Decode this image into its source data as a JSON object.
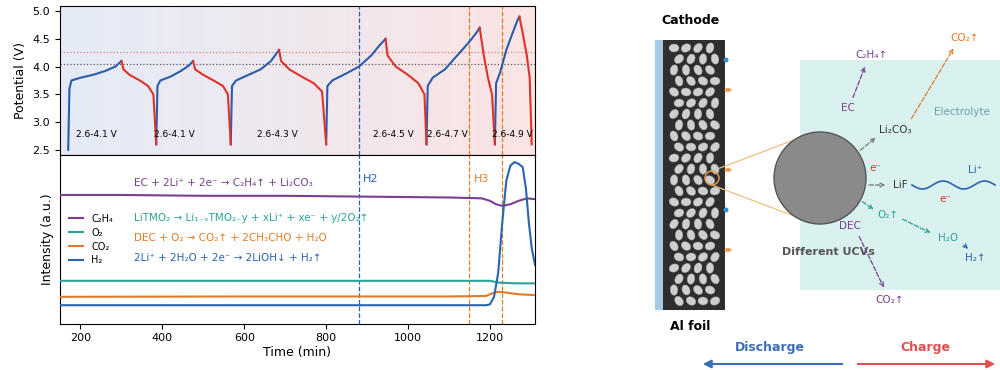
{
  "chart_data": [
    {
      "type": "line",
      "ylabel": "Potential (V)",
      "xlim": [
        150,
        1310
      ],
      "ylim": [
        2.4,
        5.1
      ],
      "yticks": [
        {
          "value": 2.5,
          "label": "2.5"
        },
        {
          "value": 3.0,
          "label": "3.0"
        },
        {
          "value": 3.5,
          "label": "3.5"
        },
        {
          "value": 4.0,
          "label": "4.0"
        },
        {
          "value": 4.5,
          "label": "4.5"
        },
        {
          "value": 5.0,
          "label": "5.0"
        }
      ],
      "tick_labels": "y",
      "series": [
        {
          "color": "#2a5caa",
          "x": [
            170,
            173,
            178,
            200,
            230,
            260,
            285,
            300,
            null,
            385,
            388,
            395,
            420,
            445,
            465,
            475,
            null,
            567,
            570,
            580,
            610,
            640,
            665,
            685,
            null,
            800,
            803,
            815,
            850,
            880,
            910,
            930,
            945,
            null,
            1045,
            1048,
            1060,
            1090,
            1120,
            1150,
            1168,
            1175,
            null,
            1212,
            1215,
            1225,
            1240,
            1255,
            1268,
            1272
          ],
          "values": [
            2.5,
            3.6,
            3.75,
            3.8,
            3.85,
            3.92,
            4.0,
            4.1,
            null,
            2.6,
            3.65,
            3.75,
            3.82,
            3.92,
            4.02,
            4.1,
            null,
            2.6,
            3.65,
            3.75,
            3.85,
            3.95,
            4.1,
            4.3,
            null,
            2.6,
            3.65,
            3.75,
            3.88,
            4.0,
            4.2,
            4.38,
            4.5,
            null,
            2.6,
            3.65,
            3.8,
            3.95,
            4.2,
            4.45,
            4.62,
            4.7,
            null,
            2.6,
            3.7,
            3.9,
            4.3,
            4.6,
            4.85,
            4.9
          ]
        },
        {
          "color": "#e0322a",
          "x": [
            300,
            305,
            320,
            345,
            365,
            378,
            385,
            null,
            475,
            480,
            500,
            525,
            548,
            560,
            567,
            null,
            685,
            690,
            710,
            740,
            770,
            790,
            800,
            null,
            945,
            950,
            970,
            1000,
            1025,
            1040,
            1045,
            null,
            1175,
            1185,
            1195,
            1205,
            1212,
            null,
            1272,
            1280,
            1290,
            1297,
            1302
          ],
          "values": [
            4.1,
            3.95,
            3.85,
            3.75,
            3.65,
            3.5,
            2.6,
            null,
            4.1,
            3.95,
            3.85,
            3.75,
            3.65,
            3.5,
            2.6,
            null,
            4.3,
            4.1,
            3.95,
            3.82,
            3.7,
            3.55,
            2.6,
            null,
            4.5,
            4.2,
            4.0,
            3.85,
            3.7,
            3.5,
            2.6,
            null,
            4.7,
            4.2,
            3.8,
            3.5,
            2.6,
            null,
            4.9,
            4.6,
            4.2,
            3.8,
            2.6
          ]
        }
      ],
      "hlines": [
        {
          "y": 4.27,
          "color": "#e08080"
        },
        {
          "y": 4.05,
          "color": "#555555"
        }
      ],
      "annotations": [
        {
          "text": "2.6-4.1 V",
          "x": 240,
          "y": 2.78
        },
        {
          "text": "2.6-4.1 V",
          "x": 430,
          "y": 2.78
        },
        {
          "text": "2.6-4.3 V",
          "x": 680,
          "y": 2.78
        },
        {
          "text": "2.6-4.5 V",
          "x": 965,
          "y": 2.78
        },
        {
          "text": "2.6-4.7 V",
          "x": 1095,
          "y": 2.78
        },
        {
          "text": "2.6-4.9 V",
          "x": 1255,
          "y": 2.78
        }
      ]
    },
    {
      "type": "line",
      "xlabel": "Time (min)",
      "ylabel": "Intensity (a.u.)",
      "xlim": [
        150,
        1310
      ],
      "xticks": [
        200,
        400,
        600,
        800,
        1000,
        1200
      ],
      "ylim": [
        0,
        10
      ],
      "tick_labels": "x",
      "legend": "center left",
      "series": [
        {
          "name": "C₂H₄",
          "color": "#7b3f8f",
          "x": [
            150,
            300,
            500,
            700,
            900,
            1100,
            1180,
            1200,
            1215,
            1230,
            1250,
            1270,
            1290,
            1310
          ],
          "values": [
            7.65,
            7.65,
            7.6,
            7.6,
            7.55,
            7.5,
            7.45,
            7.3,
            7.1,
            7.0,
            7.1,
            7.3,
            7.45,
            7.4
          ]
        },
        {
          "name": "O₂",
          "color": "#2aa39a",
          "x": [
            150,
            400,
            800,
            1200,
            1220,
            1260,
            1310
          ],
          "values": [
            2.55,
            2.55,
            2.55,
            2.55,
            2.45,
            2.4,
            2.4
          ]
        },
        {
          "name": "CO₂",
          "color": "#e07b28",
          "x": [
            150,
            600,
            1100,
            1190,
            1205,
            1220,
            1240,
            1270,
            1310
          ],
          "values": [
            1.6,
            1.62,
            1.62,
            1.65,
            1.8,
            1.9,
            1.85,
            1.75,
            1.7
          ]
        },
        {
          "name": "H₂",
          "color": "#2a64b0",
          "x": [
            150,
            600,
            1190,
            1200,
            1210,
            1220,
            1230,
            1240,
            1250,
            1260,
            1270,
            1280,
            1288,
            1295,
            1302,
            1310
          ],
          "values": [
            1.1,
            1.1,
            1.1,
            1.15,
            1.6,
            3.0,
            6.0,
            8.5,
            9.4,
            9.6,
            9.5,
            9.3,
            8.0,
            6.0,
            4.5,
            3.5
          ]
        }
      ],
      "vlines": [
        {
          "x": 880,
          "color": "#2a64b0",
          "text": "H2"
        },
        {
          "x": 1150,
          "color": "#e07b28",
          "text": "H3"
        },
        {
          "x": 1230,
          "color": "#e07b28"
        }
      ],
      "annotations": [
        {
          "text": "EC + 2Li⁺ + 2e⁻ → C₂H₄↑ + Li₂CO₃",
          "x": 330,
          "y": 8.35,
          "color": "#7b3f8f"
        },
        {
          "text": "LiTMO₂ → Li₁₋ₓTMO₂₋y + xLi⁺ + xe⁻ + y/2O₂↑",
          "x": 330,
          "y": 6.3,
          "color": "#2aa39a"
        },
        {
          "text": "DEC + O₂ → CO₂↑ + 2CH₃CHO + H₂O",
          "x": 330,
          "y": 5.1,
          "color": "#e07b28"
        },
        {
          "text": "2Li⁺ + 2H₂O + 2e⁻ → 2LiOH↓ + H₂↑",
          "x": 330,
          "y": 3.9,
          "color": "#2a64b0"
        }
      ]
    }
  ],
  "diagram": {
    "cathode": "Cathode",
    "current_collector": "Al foil",
    "particle": "Different UCVs",
    "electrolyte": "Electrolyte",
    "species": [
      {
        "text": "C₂H₄↑",
        "color": "#7b3f8f"
      },
      {
        "text": "CO₂↑",
        "color": "#e07b28"
      },
      {
        "text": "EC",
        "color": "#7b3f8f"
      },
      {
        "text": "Li₂CO₃",
        "color": "#333333"
      },
      {
        "text": "e⁻",
        "color": "#e0322a"
      },
      {
        "text": "LiF",
        "color": "#333333"
      },
      {
        "text": "Li⁺",
        "color": "#2a64b0"
      },
      {
        "text": "e⁻",
        "color": "#e0322a"
      },
      {
        "text": "O₂↑",
        "color": "#2aa39a"
      },
      {
        "text": "DEC",
        "color": "#7b3f8f"
      },
      {
        "text": "H₂O",
        "color": "#2aa39a"
      },
      {
        "text": "H₂↑",
        "color": "#2a64b0"
      },
      {
        "text": "CO₂↑",
        "color": "#7b3f8f"
      }
    ],
    "directions": [
      {
        "text": "Discharge",
        "color": "#3a6fb5"
      },
      {
        "text": "Charge",
        "color": "#e05050"
      }
    ]
  }
}
